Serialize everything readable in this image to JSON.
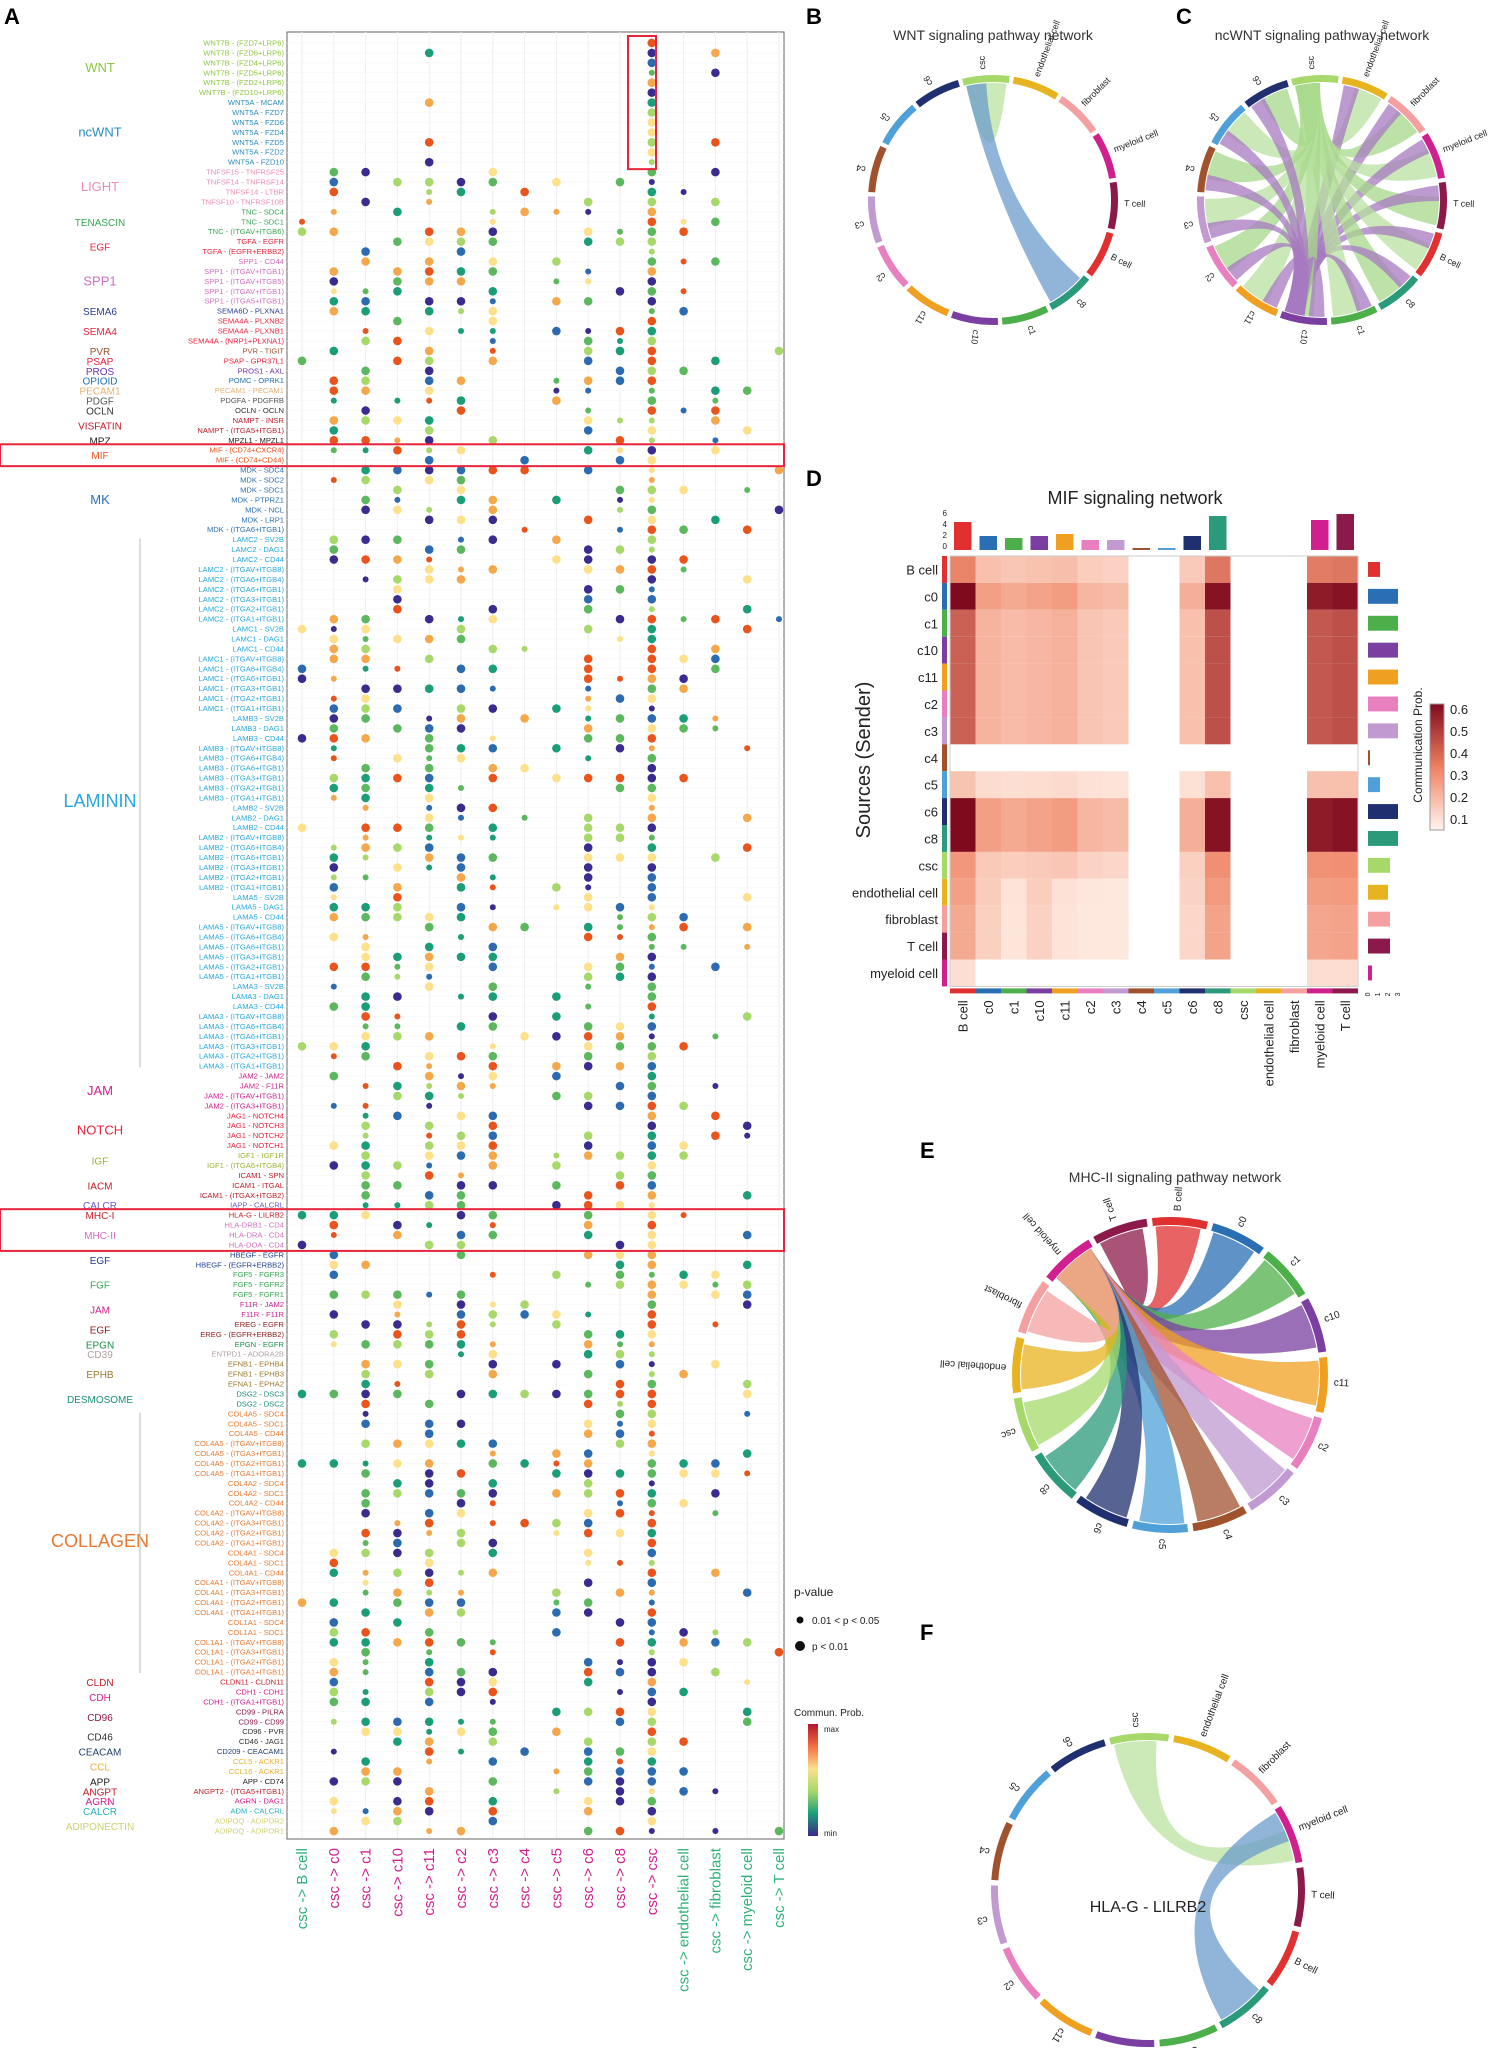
{
  "chart_data": [
    {
      "panel": "A",
      "type": "scatter",
      "title": "",
      "x_categories": [
        "csc -> B cell",
        "csc -> c0",
        "csc -> c1",
        "csc -> c10",
        "csc -> c11",
        "csc -> c2",
        "csc -> c3",
        "csc -> c4",
        "csc -> c5",
        "csc -> c6",
        "csc -> c8",
        "csc -> csc",
        "csc -> endothelial cell",
        "csc -> fibroblast",
        "csc -> myeloid cell",
        "csc -> T cell"
      ],
      "pathways": [
        {
          "name": "WNT",
          "color": "#8dc63f",
          "pairs": [
            "WNT7B - (FZD7+LRP6)",
            "WNT7B - (FZD6+LRP6)",
            "WNT7B - (FZD4+LRP6)",
            "WNT7B - (FZD5+LRP6)",
            "WNT7B - (FZD2+LRP6)",
            "WNT7B - (FZD10+LRP6)"
          ]
        },
        {
          "name": "ncWNT",
          "color": "#2b8cbe",
          "pairs": [
            "WNT5A - MCAM",
            "WNT5A - FZD7",
            "WNT5A - FZD6",
            "WNT5A - FZD4",
            "WNT5A - FZD5",
            "WNT5A - FZD2",
            "WNT5A - FZD10"
          ]
        },
        {
          "name": "LIGHT",
          "color": "#f08cb4",
          "pairs": [
            "TNFSF15 - TNFRSF25",
            "TNFSF14 - TNFRSF14",
            "TNFSF14 - LTBR",
            "TNFSF10 - TNFRSF10B"
          ]
        },
        {
          "name": "TENASCIN",
          "color": "#3aa655",
          "pairs": [
            "TNC - SDC4",
            "TNC - SDC1",
            "TNC - (ITGAV+ITGB6)"
          ]
        },
        {
          "name": "EGF",
          "color": "#e8243c",
          "pairs": [
            "TGFA - EGFR",
            "TGFA - (EGFR+ERBB2)"
          ]
        },
        {
          "name": "SPP1",
          "color": "#d070c0",
          "pairs": [
            "SPP1 - CD44",
            "SPP1 - (ITGAV+ITGB1)",
            "SPP1 - (ITGAV+ITGB5)",
            "SPP1 - (ITGAV+ITGB1)",
            "SPP1 - (ITGA5+ITGB1)"
          ]
        },
        {
          "name": "SEMA6",
          "color": "#2a3f8f",
          "pairs": [
            "SEMA6D - PLXNA1"
          ]
        },
        {
          "name": "SEMA4",
          "color": "#e8243c",
          "pairs": [
            "SEMA4A - PLXNB2",
            "SEMA4A - PLXNB1",
            "SEMA4A - (NRP1+PLXNA1)"
          ]
        },
        {
          "name": "PVR",
          "color": "#a0522d",
          "pairs": [
            "PVR - TIGIT"
          ]
        },
        {
          "name": "PSAP",
          "color": "#e8243c",
          "pairs": [
            "PSAP - GPR37L1"
          ]
        },
        {
          "name": "PROS",
          "color": "#7030a0",
          "pairs": [
            "PROS1 - AXL"
          ]
        },
        {
          "name": "OPIOID",
          "color": "#1f6fb4",
          "pairs": [
            "POMC - OPRK1"
          ]
        },
        {
          "name": "PECAM1",
          "color": "#e8b070",
          "pairs": [
            "PECAM1 - PECAM1"
          ]
        },
        {
          "name": "PDGF",
          "color": "#555555",
          "pairs": [
            "PDGFA - PDGFRB"
          ]
        },
        {
          "name": "OCLN",
          "color": "#333333",
          "pairs": [
            "OCLN - OCLN"
          ]
        },
        {
          "name": "VISFATIN",
          "color": "#c0202a",
          "pairs": [
            "NAMPT - INSR",
            "NAMPT - (ITGA5+ITGB1)"
          ]
        },
        {
          "name": "MPZ",
          "color": "#222222",
          "pairs": [
            "MPZL1 - MPZL1"
          ]
        },
        {
          "name": "MIF",
          "color": "#e8541c",
          "pairs": [
            "MIF - (CD74+CXCR4)",
            "MIF - (CD74+CD44)"
          ]
        },
        {
          "name": "MK",
          "color": "#2b6fb4",
          "pairs": [
            "MDK - SDC4",
            "MDK - SDC2",
            "MDK - SDC1",
            "MDK - PTPRZ1",
            "MDK - NCL",
            "MDK - LRP1",
            "MDK - (ITGA6+ITGB1)"
          ]
        },
        {
          "name": "LAMININ",
          "color": "#27a8e0",
          "pairs": [
            "LAMC2 - SV2B",
            "LAMC2 - DAG1",
            "LAMC2 - CD44",
            "LAMC2 - (ITGAV+ITGB8)",
            "LAMC2 - (ITGA6+ITGB4)",
            "LAMC2 - (ITGA6+ITGB1)",
            "LAMC2 - (ITGA3+ITGB1)",
            "LAMC2 - (ITGA2+ITGB1)",
            "LAMC2 - (ITGA1+ITGB1)",
            "LAMC1 - SV2B",
            "LAMC1 - DAG1",
            "LAMC1 - CD44",
            "LAMC1 - (ITGAV+ITGB8)",
            "LAMC1 - (ITGA6+ITGB4)",
            "LAMC1 - (ITGA6+ITGB1)",
            "LAMC1 - (ITGA3+ITGB1)",
            "LAMC1 - (ITGA2+ITGB1)",
            "LAMC1 - (ITGA1+ITGB1)",
            "LAMB3 - SV2B",
            "LAMB3 - DAG1",
            "LAMB3 - CD44",
            "LAMB3 - (ITGAV+ITGB8)",
            "LAMB3 - (ITGA6+ITGB4)",
            "LAMB3 - (ITGA6+ITGB1)",
            "LAMB3 - (ITGA3+ITGB1)",
            "LAMB3 - (ITGA2+ITGB1)",
            "LAMB3 - (ITGA1+ITGB1)",
            "LAMB2 - SV2B",
            "LAMB2 - DAG1",
            "LAMB2 - CD44",
            "LAMB2 - (ITGAV+ITGB8)",
            "LAMB2 - (ITGA6+ITGB4)",
            "LAMB2 - (ITGA6+ITGB1)",
            "LAMB2 - (ITGA3+ITGB1)",
            "LAMB2 - (ITGA2+ITGB1)",
            "LAMB2 - (ITGA1+ITGB1)",
            "LAMA5 - SV2B",
            "LAMA5 - DAG1",
            "LAMA5 - CD44",
            "LAMA5 - (ITGAV+ITGB8)",
            "LAMA5 - (ITGA6+ITGB4)",
            "LAMA5 - (ITGA6+ITGB1)",
            "LAMA5 - (ITGA3+ITGB1)",
            "LAMA5 - (ITGA2+ITGB1)",
            "LAMA5 - (ITGA1+ITGB1)",
            "LAMA3 - SV2B",
            "LAMA3 - DAG1",
            "LAMA3 - CD44",
            "LAMA3 - (ITGAV+ITGB8)",
            "LAMA3 - (ITGA6+ITGB4)",
            "LAMA3 - (ITGA6+ITGB1)",
            "LAMA3 - (ITGA3+ITGB1)",
            "LAMA3 - (ITGA2+ITGB1)",
            "LAMA3 - (ITGA1+ITGB1)"
          ]
        },
        {
          "name": "JAM",
          "color": "#d02090",
          "pairs": [
            "JAM2 - JAM2",
            "JAM2 - F11R",
            "JAM2 - (ITGAV+ITGB1)",
            "JAM2 - (ITGA3+ITGB1)"
          ]
        },
        {
          "name": "NOTCH",
          "color": "#e8243c",
          "pairs": [
            "JAG1 - NOTCH4",
            "JAG1 - NOTCH3",
            "JAG1 - NOTCH2",
            "JAG1 - NOTCH1"
          ]
        },
        {
          "name": "IGF",
          "color": "#9db030",
          "pairs": [
            "IGF1 - IGF1R",
            "IGF1 - (ITGA6+ITGB4)"
          ]
        },
        {
          "name": "IACM",
          "color": "#c0202a",
          "pairs": [
            "ICAM1 - SPN",
            "ICAM1 - ITGAL",
            "ICAM1 - (ITGAX+ITGB2)"
          ]
        },
        {
          "name": "CALCR",
          "color": "#6a5acd",
          "pairs": [
            "IAPP - CALCRL"
          ]
        },
        {
          "name": "MHC-I",
          "color": "#c0202a",
          "pairs": [
            "HLA-G - LILRB2"
          ]
        },
        {
          "name": "MHC-II",
          "color": "#d070c0",
          "pairs": [
            "HLA-DRB1 - CD4",
            "HLA-DRA - CD4",
            "HLA-DOA - CD4"
          ]
        },
        {
          "name": "EGF",
          "color": "#1f3f8f",
          "pairs": [
            "HBEGF - EGFR",
            "HBEGF - (EGFR+ERBB2)"
          ]
        },
        {
          "name": "FGF",
          "color": "#3aa655",
          "pairs": [
            "FGF5 - FGFR3",
            "FGF5 - FGFR2",
            "FGF5 - FGFR1"
          ]
        },
        {
          "name": "JAM",
          "color": "#d02090",
          "pairs": [
            "F11R - JAM2",
            "F11R - F11R"
          ]
        },
        {
          "name": "EGF",
          "color": "#8b1a1a",
          "pairs": [
            "EREG - EGFR",
            "EREG - (EGFR+ERBB2)"
          ]
        },
        {
          "name": "EPGN",
          "color": "#1a8f4a",
          "pairs": [
            "EPGN - EGFR"
          ]
        },
        {
          "name": "CD39",
          "color": "#b0a0a0",
          "pairs": [
            "ENTPD1 - ADORA2B"
          ]
        },
        {
          "name": "EPHB",
          "color": "#9a7a30",
          "pairs": [
            "EFNB1 - EPHB4",
            "EFNB1 - EPHB3",
            "EFNA1 - EPHA2"
          ]
        },
        {
          "name": "DESMOSOME",
          "color": "#1a8f7a",
          "pairs": [
            "DSG2 - DSC3",
            "DSG2 - DSC2"
          ]
        },
        {
          "name": "COLLAGEN",
          "color": "#e87a30",
          "pairs": [
            "COL4A5 - SDC4",
            "COL4A5 - SDC1",
            "COL4A5 - CD44",
            "COL4A5 - (ITGAV+ITGB8)",
            "COL4A5 - (ITGA3+ITGB1)",
            "COL4A5 - (ITGA2+ITGB1)",
            "COL4A5 - (ITGA1+ITGB1)",
            "COL4A2 - SDC4",
            "COL4A2 - SDC1",
            "COL4A2 - CD44",
            "COL4A2 - (ITGAV+ITGB8)",
            "COL4A2 - (ITGA3+ITGB1)",
            "COL4A2 - (ITGA2+ITGB1)",
            "COL4A2 - (ITGA1+ITGB1)",
            "COL4A1 - SDC4",
            "COL4A1 - SDC1",
            "COL4A1 - CD44",
            "COL4A1 - (ITGAV+ITGB8)",
            "COL4A1 - (ITGA3+ITGB1)",
            "COL4A1 - (ITGA2+ITGB1)",
            "COL4A1 - (ITGA1+ITGB1)",
            "COL1A1 - SDC4",
            "COL1A1 - SDC1",
            "COL1A1 - (ITGAV+ITGB8)",
            "COL1A1 - (ITGA3+ITGB1)",
            "COL1A1 - (ITGA2+ITGB1)",
            "COL1A1 - (ITGA1+ITGB1)"
          ]
        },
        {
          "name": "CLDN",
          "color": "#c0202a",
          "pairs": [
            "CLDN11 - CLDN11"
          ]
        },
        {
          "name": "CDH",
          "color": "#d02090",
          "pairs": [
            "CDH1 - CDH1",
            "CDH1 - (ITGA1+ITGB1)"
          ]
        },
        {
          "name": "CD96",
          "color": "#8b1a4a",
          "pairs": [
            "CD99 - PILRA",
            "CD99 - CD99"
          ]
        },
        {
          "name": "CD46",
          "color": "#333333",
          "pairs": [
            "CD96 - PVR",
            "CD46 - JAG1"
          ]
        },
        {
          "name": "CEACAM",
          "color": "#1f3f6f",
          "pairs": [
            "CD209 - CEACAM1"
          ]
        },
        {
          "name": "CCL",
          "color": "#e8b030",
          "pairs": [
            "CCL5 - ACKR1",
            "CCL16 - ACKR1"
          ]
        },
        {
          "name": "APP",
          "color": "#222222",
          "pairs": [
            "APP - CD74"
          ]
        },
        {
          "name": "ANGPT",
          "color": "#c0202a",
          "pairs": [
            "ANGPT2 - (ITGA5+ITGB1)"
          ]
        },
        {
          "name": "AGRN",
          "color": "#d02090",
          "pairs": [
            "AGRN - DAG1"
          ]
        },
        {
          "name": "CALCR",
          "color": "#2bb0c0",
          "pairs": [
            "ADM - CALCRL"
          ]
        },
        {
          "name": "ADIPONECTIN",
          "color": "#d0d070",
          "pairs": [
            "ADIPOQ - ADIPOR2",
            "ADIPOQ - ADIPOR1"
          ]
        }
      ],
      "legend_pvalue": {
        "title": "p-value",
        "items": [
          "0.01 < p < 0.05",
          "p < 0.01"
        ]
      },
      "legend_prob": {
        "title": "Commun. Prob.",
        "max_label": "max",
        "min_label": "min"
      }
    },
    {
      "panel": "B",
      "type": "chord",
      "title": "WNT signaling pathway network",
      "sectors": [
        "csc",
        "endothelial cell",
        "fibroblast",
        "myeloid cell",
        "T cell",
        "B cell",
        "c8",
        "c1",
        "c10",
        "c11",
        "c2",
        "c3",
        "c4",
        "c5",
        "c6"
      ]
    },
    {
      "panel": "C",
      "type": "chord",
      "title": "ncWNT signaling pathway network",
      "sectors": [
        "csc",
        "endothelial cell",
        "fibroblast",
        "myeloid cell",
        "T cell",
        "B cell",
        "c8",
        "c1",
        "c10",
        "c11",
        "c2",
        "c3",
        "c4",
        "c5",
        "c6"
      ]
    },
    {
      "panel": "D",
      "type": "heatmap",
      "title": "MIF signaling network",
      "ylabel": "Sources (Sender)",
      "colorbar_label": "Communication Prob.",
      "colorbar_ticks": [
        "0.6",
        "0.5",
        "0.4",
        "0.3",
        "0.2",
        "0.1"
      ],
      "rows": [
        "B cell",
        "c0",
        "c1",
        "c10",
        "c11",
        "c2",
        "c3",
        "c4",
        "c5",
        "c6",
        "c8",
        "csc",
        "endothelial cell",
        "fibroblast",
        "T cell",
        "myeloid cell"
      ],
      "cols": [
        "B cell",
        "c0",
        "c1",
        "c10",
        "c11",
        "c2",
        "c3",
        "c4",
        "c5",
        "c6",
        "c8",
        "csc",
        "endothelial cell",
        "fibroblast",
        "myeloid cell",
        "T cell"
      ],
      "top_bar_ticks": [
        "6",
        "4",
        "2",
        "0"
      ],
      "right_bar_ticks": [
        "0",
        "1",
        "2",
        "3"
      ]
    },
    {
      "panel": "E",
      "type": "chord",
      "title": "MHC-II signaling pathway network",
      "sectors": [
        "myeloid cell",
        "T cell",
        "B cell",
        "c0",
        "c1",
        "c10",
        "c11",
        "c2",
        "c3",
        "c4",
        "c5",
        "c6",
        "c8",
        "csc",
        "endothelial cell",
        "fibroblast"
      ]
    },
    {
      "panel": "F",
      "type": "chord",
      "title": "HLA-G - LILRB2",
      "sectors": [
        "csc",
        "endothelial cell",
        "fibroblast",
        "myeloid cell",
        "T cell",
        "B cell",
        "c8",
        "c1",
        "c10",
        "c11",
        "c2",
        "c3",
        "c4",
        "c5",
        "c6"
      ]
    }
  ],
  "panel_letters": [
    "A",
    "B",
    "C",
    "D",
    "E",
    "F"
  ],
  "heat_colors": {
    "low": "#fff5f0",
    "mid": "#f39a7a",
    "high": "#7f0a1e"
  }
}
